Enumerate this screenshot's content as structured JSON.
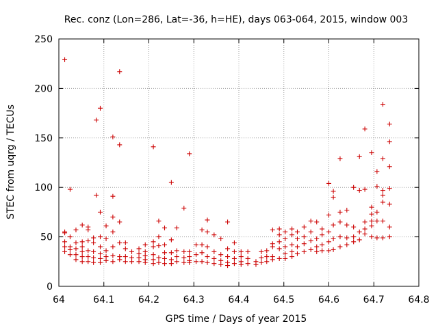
{
  "chart_data": {
    "type": "scatter",
    "title": "Rec. conz (Lon=286, Lat=-36, h=HE), days 063-064, 2015, window 003",
    "xlabel": "GPS time / Days of year 2015",
    "ylabel": "STEC from uqrg / TECUs",
    "xlim": [
      64,
      64.8
    ],
    "ylim": [
      0,
      250
    ],
    "xticks": [
      "64",
      "64.1",
      "64.2",
      "64.3",
      "64.4",
      "64.5",
      "64.6",
      "64.7",
      "64.8"
    ],
    "yticks": [
      "0",
      "50",
      "100",
      "150",
      "200",
      "250"
    ],
    "grid": true,
    "marker": "+",
    "color": "#cc0000",
    "series": [
      {
        "points": [
          [
            64.013,
            229
          ],
          [
            64.013,
            55
          ],
          [
            64.013,
            54
          ],
          [
            64.013,
            45
          ],
          [
            64.013,
            40
          ],
          [
            64.013,
            35
          ],
          [
            64.025,
            98
          ],
          [
            64.025,
            50
          ],
          [
            64.025,
            40
          ],
          [
            64.025,
            37
          ],
          [
            64.025,
            32
          ],
          [
            64.038,
            57
          ],
          [
            64.038,
            44
          ],
          [
            64.038,
            38
          ],
          [
            64.038,
            32
          ],
          [
            64.038,
            27
          ],
          [
            64.052,
            62
          ],
          [
            64.052,
            45
          ],
          [
            64.052,
            40
          ],
          [
            64.052,
            35
          ],
          [
            64.052,
            30
          ],
          [
            64.052,
            25
          ],
          [
            64.065,
            60
          ],
          [
            64.065,
            57
          ],
          [
            64.065,
            46
          ],
          [
            64.065,
            36
          ],
          [
            64.065,
            30
          ],
          [
            64.065,
            25
          ],
          [
            64.077,
            49
          ],
          [
            64.077,
            44
          ],
          [
            64.077,
            35
          ],
          [
            64.077,
            29
          ],
          [
            64.077,
            24
          ],
          [
            64.083,
            168
          ],
          [
            64.083,
            92
          ],
          [
            64.092,
            180
          ],
          [
            64.092,
            75
          ],
          [
            64.092,
            50
          ],
          [
            64.092,
            40
          ],
          [
            64.092,
            33
          ],
          [
            64.092,
            28
          ],
          [
            64.092,
            24
          ],
          [
            64.105,
            61
          ],
          [
            64.105,
            48
          ],
          [
            64.105,
            36
          ],
          [
            64.105,
            30
          ],
          [
            64.105,
            26
          ],
          [
            64.12,
            151
          ],
          [
            64.12,
            91
          ],
          [
            64.12,
            70
          ],
          [
            64.12,
            55
          ],
          [
            64.12,
            40
          ],
          [
            64.12,
            31
          ],
          [
            64.12,
            25
          ],
          [
            64.135,
            217
          ],
          [
            64.135,
            143
          ],
          [
            64.135,
            65
          ],
          [
            64.135,
            44
          ],
          [
            64.135,
            30
          ],
          [
            64.135,
            27
          ],
          [
            64.148,
            44
          ],
          [
            64.148,
            38
          ],
          [
            64.148,
            30
          ],
          [
            64.148,
            25
          ],
          [
            64.162,
            35
          ],
          [
            64.162,
            29
          ],
          [
            64.162,
            25
          ],
          [
            64.178,
            38
          ],
          [
            64.178,
            33
          ],
          [
            64.178,
            29
          ],
          [
            64.178,
            25
          ],
          [
            64.192,
            42
          ],
          [
            64.192,
            35
          ],
          [
            64.192,
            31
          ],
          [
            64.192,
            27
          ],
          [
            64.192,
            24
          ],
          [
            64.21,
            141
          ],
          [
            64.21,
            45
          ],
          [
            64.21,
            40
          ],
          [
            64.21,
            32
          ],
          [
            64.21,
            27
          ],
          [
            64.21,
            23
          ],
          [
            64.222,
            66
          ],
          [
            64.222,
            50
          ],
          [
            64.222,
            41
          ],
          [
            64.222,
            29
          ],
          [
            64.222,
            24
          ],
          [
            64.235,
            59
          ],
          [
            64.235,
            42
          ],
          [
            64.235,
            34
          ],
          [
            64.235,
            28
          ],
          [
            64.235,
            23
          ],
          [
            64.25,
            105
          ],
          [
            64.25,
            47
          ],
          [
            64.25,
            34
          ],
          [
            64.25,
            27
          ],
          [
            64.25,
            23
          ],
          [
            64.262,
            59
          ],
          [
            64.262,
            36
          ],
          [
            64.262,
            30
          ],
          [
            64.262,
            25
          ],
          [
            64.278,
            79
          ],
          [
            64.278,
            35
          ],
          [
            64.278,
            29
          ],
          [
            64.278,
            24
          ],
          [
            64.29,
            134
          ],
          [
            64.29,
            35
          ],
          [
            64.29,
            30
          ],
          [
            64.29,
            26
          ],
          [
            64.29,
            24
          ],
          [
            64.305,
            42
          ],
          [
            64.305,
            32
          ],
          [
            64.305,
            25
          ],
          [
            64.318,
            57
          ],
          [
            64.318,
            42
          ],
          [
            64.318,
            34
          ],
          [
            64.318,
            25
          ],
          [
            64.33,
            67
          ],
          [
            64.33,
            55
          ],
          [
            64.33,
            40
          ],
          [
            64.33,
            30
          ],
          [
            64.33,
            24
          ],
          [
            64.345,
            52
          ],
          [
            64.345,
            35
          ],
          [
            64.345,
            28
          ],
          [
            64.345,
            23
          ],
          [
            64.36,
            48
          ],
          [
            64.36,
            32
          ],
          [
            64.36,
            26
          ],
          [
            64.36,
            22
          ],
          [
            64.375,
            65
          ],
          [
            64.375,
            38
          ],
          [
            64.375,
            30
          ],
          [
            64.375,
            24
          ],
          [
            64.375,
            21
          ],
          [
            64.39,
            44
          ],
          [
            64.39,
            35
          ],
          [
            64.39,
            28
          ],
          [
            64.39,
            23
          ],
          [
            64.405,
            35
          ],
          [
            64.405,
            30
          ],
          [
            64.405,
            25
          ],
          [
            64.405,
            22
          ],
          [
            64.42,
            35
          ],
          [
            64.42,
            28
          ],
          [
            64.42,
            23
          ],
          [
            64.438,
            25
          ],
          [
            64.438,
            22
          ],
          [
            64.45,
            35
          ],
          [
            64.45,
            29
          ],
          [
            64.45,
            24
          ],
          [
            64.462,
            36
          ],
          [
            64.462,
            30
          ],
          [
            64.462,
            25
          ],
          [
            64.475,
            57
          ],
          [
            64.475,
            43
          ],
          [
            64.475,
            40
          ],
          [
            64.475,
            30
          ],
          [
            64.475,
            27
          ],
          [
            64.49,
            58
          ],
          [
            64.49,
            52
          ],
          [
            64.49,
            45
          ],
          [
            64.49,
            38
          ],
          [
            64.49,
            28
          ],
          [
            64.503,
            55
          ],
          [
            64.503,
            48
          ],
          [
            64.503,
            40
          ],
          [
            64.503,
            33
          ],
          [
            64.503,
            28
          ],
          [
            64.518,
            58
          ],
          [
            64.518,
            52
          ],
          [
            64.518,
            42
          ],
          [
            64.518,
            35
          ],
          [
            64.518,
            30
          ],
          [
            64.53,
            55
          ],
          [
            64.53,
            48
          ],
          [
            64.53,
            40
          ],
          [
            64.53,
            33
          ],
          [
            64.545,
            60
          ],
          [
            64.545,
            50
          ],
          [
            64.545,
            43
          ],
          [
            64.545,
            35
          ],
          [
            64.56,
            66
          ],
          [
            64.56,
            55
          ],
          [
            64.56,
            46
          ],
          [
            64.56,
            37
          ],
          [
            64.573,
            65
          ],
          [
            64.573,
            48
          ],
          [
            64.573,
            40
          ],
          [
            64.573,
            35
          ],
          [
            64.585,
            58
          ],
          [
            64.585,
            52
          ],
          [
            64.585,
            42
          ],
          [
            64.585,
            36
          ],
          [
            64.6,
            104
          ],
          [
            64.6,
            72
          ],
          [
            64.6,
            55
          ],
          [
            64.6,
            45
          ],
          [
            64.6,
            36
          ],
          [
            64.61,
            96
          ],
          [
            64.61,
            90
          ],
          [
            64.61,
            62
          ],
          [
            64.61,
            48
          ],
          [
            64.61,
            37
          ],
          [
            64.625,
            129
          ],
          [
            64.625,
            75
          ],
          [
            64.625,
            65
          ],
          [
            64.625,
            50
          ],
          [
            64.625,
            40
          ],
          [
            64.64,
            77
          ],
          [
            64.64,
            62
          ],
          [
            64.64,
            49
          ],
          [
            64.64,
            42
          ],
          [
            64.655,
            100
          ],
          [
            64.655,
            60
          ],
          [
            64.655,
            50
          ],
          [
            64.655,
            45
          ],
          [
            64.668,
            131
          ],
          [
            64.668,
            97
          ],
          [
            64.668,
            55
          ],
          [
            64.668,
            47
          ],
          [
            64.68,
            159
          ],
          [
            64.68,
            98
          ],
          [
            64.68,
            65
          ],
          [
            64.68,
            58
          ],
          [
            64.68,
            53
          ],
          [
            64.695,
            135
          ],
          [
            64.695,
            80
          ],
          [
            64.695,
            73
          ],
          [
            64.695,
            66
          ],
          [
            64.695,
            61
          ],
          [
            64.695,
            50
          ],
          [
            64.707,
            116
          ],
          [
            64.707,
            101
          ],
          [
            64.707,
            75
          ],
          [
            64.707,
            66
          ],
          [
            64.707,
            49
          ],
          [
            64.72,
            184
          ],
          [
            64.72,
            129
          ],
          [
            64.72,
            97
          ],
          [
            64.72,
            92
          ],
          [
            64.72,
            85
          ],
          [
            64.72,
            66
          ],
          [
            64.72,
            49
          ],
          [
            64.735,
            164
          ],
          [
            64.735,
            146
          ],
          [
            64.735,
            121
          ],
          [
            64.735,
            99
          ],
          [
            64.735,
            83
          ],
          [
            64.735,
            60
          ],
          [
            64.735,
            50
          ]
        ]
      }
    ]
  }
}
